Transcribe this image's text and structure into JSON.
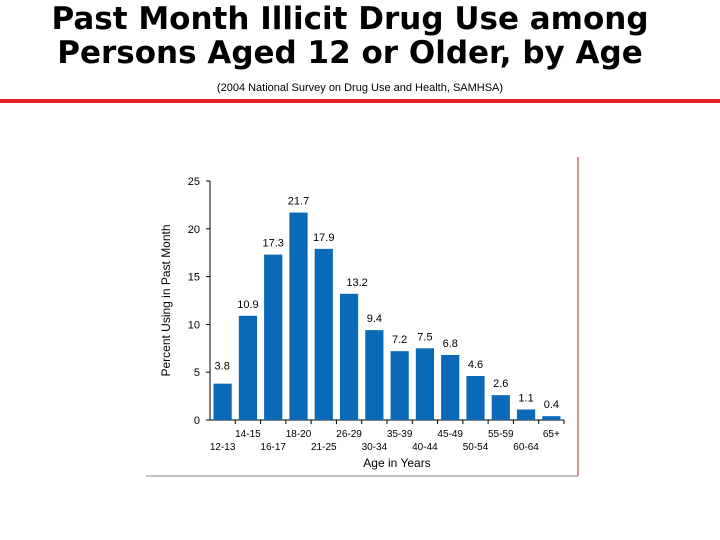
{
  "slide": {
    "title_line1": "Past Month Illicit Drug Use among",
    "title_line2": "Persons Aged 12 or Older, by Age",
    "subtitle": "(2004 National Survey on Drug Use and Health, SAMHSA)",
    "accent_color": "#e8202a"
  },
  "chart_data": {
    "type": "bar",
    "title": "",
    "xlabel": "Age in Years",
    "ylabel": "Percent Using in Past Month",
    "ylim": [
      0,
      25
    ],
    "yticks": [
      0,
      5,
      10,
      15,
      20,
      25
    ],
    "grid": false,
    "bar_color": "#0a6ab8",
    "categories": [
      "12-13",
      "14-15",
      "16-17",
      "18-20",
      "21-25",
      "26-29",
      "30-34",
      "35-39",
      "40-44",
      "45-49",
      "50-54",
      "55-59",
      "60-64",
      "65+"
    ],
    "values": [
      3.8,
      10.9,
      17.3,
      21.7,
      17.9,
      13.2,
      9.4,
      7.2,
      7.5,
      6.8,
      4.6,
      2.6,
      1.1,
      0.4
    ],
    "value_labels": [
      "3.8",
      "10.9",
      "17.3",
      "21.7",
      "17.9",
      "13.2",
      "9.4",
      "7.2",
      "7.5",
      "6.8",
      "4.6",
      "2.6",
      "1.1",
      "0.4"
    ]
  }
}
